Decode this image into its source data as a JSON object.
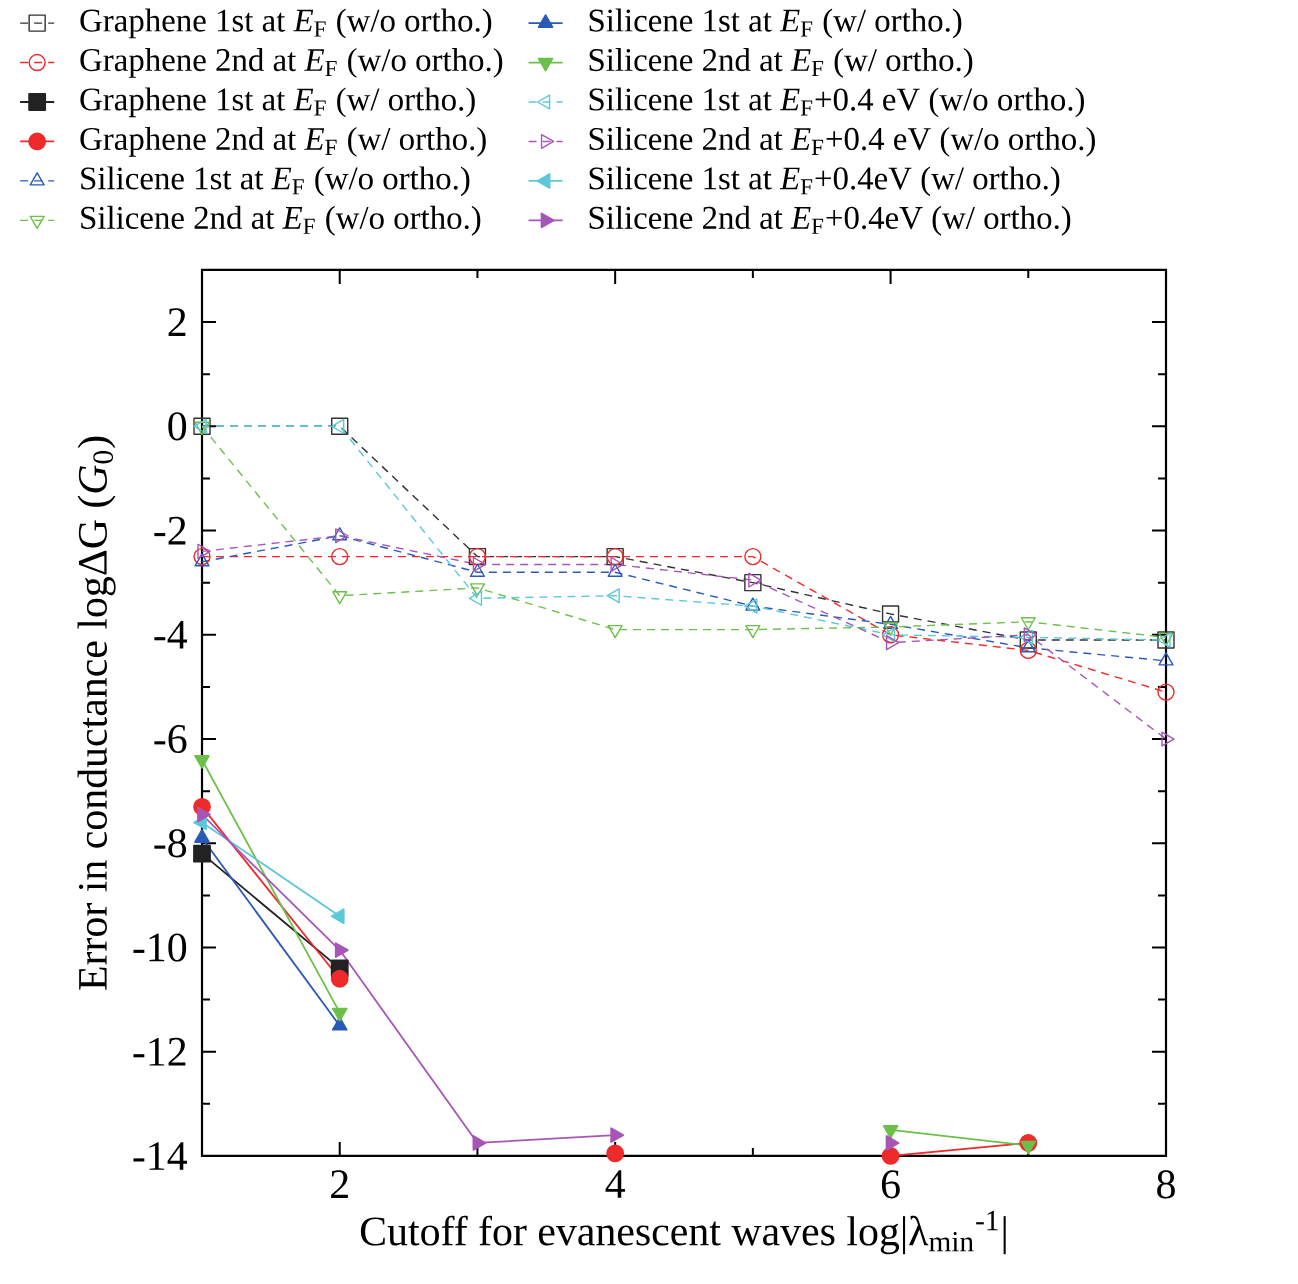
{
  "chart_data": {
    "type": "line",
    "xlabel": "Cutoff for evanescent waves log|λ$_{min}$$^{-1}$|",
    "ylabel": "Error in conductance logΔG (*G*$_{0}$)",
    "x": [
      1,
      2,
      3,
      4,
      5,
      6,
      7,
      8
    ],
    "xlim": [
      1,
      8
    ],
    "xticks": [
      2,
      4,
      6,
      8
    ],
    "ylim": [
      -14,
      3
    ],
    "yticks": [
      -14,
      -12,
      -10,
      -8,
      -6,
      -4,
      -2,
      0,
      2
    ],
    "legend": "top",
    "grid": false,
    "series": [
      {
        "name": "Graphene 1st at *E*$_{F}$ (w/o ortho.)",
        "color": "#333333",
        "marker": "square",
        "line_style": "dashed",
        "values": [
          0,
          0,
          -2.5,
          -2.5,
          -3.0,
          -3.6,
          -4.1,
          -4.1
        ]
      },
      {
        "name": "Graphene 2nd at *E*$_{F}$ (w/o ortho.)",
        "color": "#ee2a2a",
        "marker": "circle",
        "line_style": "dashed",
        "values": [
          -2.5,
          -2.5,
          -2.5,
          -2.5,
          -2.5,
          -4.0,
          -4.3,
          -5.1
        ]
      },
      {
        "name": "Graphene 1st at *E*$_{F}$ (w/ ortho.)",
        "color": "#222222",
        "marker": "square",
        "line_style": "solid",
        "values": [
          -8.2,
          -10.4,
          null,
          null,
          null,
          null,
          null,
          null
        ]
      },
      {
        "name": "Graphene 2nd at *E*$_{F}$ (w/ ortho.)",
        "color": "#ee2a2a",
        "marker": "circle",
        "line_style": "solid",
        "values": [
          -7.3,
          -10.6,
          null,
          -13.95,
          null,
          -14,
          -13.75,
          null
        ]
      },
      {
        "name": "Silicene 1st at *E*$_{F}$ (w/o ortho.)",
        "color": "#2a5ab8",
        "marker": "triangle",
        "line_style": "dashed",
        "values": [
          -2.6,
          -2.1,
          -2.8,
          -2.8,
          -3.45,
          -3.8,
          -4.25,
          -4.5
        ]
      },
      {
        "name": "Silicene 2nd at *E*$_{F}$ (w/o ortho.)",
        "color": "#6cc04a",
        "marker": "triangle-down",
        "line_style": "dashed",
        "values": [
          0,
          -3.25,
          -3.1,
          -3.9,
          -3.9,
          -3.85,
          -3.75,
          -4.05
        ]
      },
      {
        "name": "Silicene 1st at *E*$_{F}$ (w/ ortho.)",
        "color": "#2a5ab8",
        "marker": "triangle",
        "line_style": "solid",
        "values": [
          -7.9,
          -11.5,
          null,
          null,
          null,
          null,
          null,
          null
        ]
      },
      {
        "name": "Silicene 2nd at *E*$_{F}$ (w/ ortho.)",
        "color": "#6cc04a",
        "marker": "triangle-down",
        "line_style": "solid",
        "values": [
          -6.4,
          -11.25,
          null,
          null,
          null,
          -13.5,
          -13.8,
          null
        ]
      },
      {
        "name": "Silicene 1st at *E*$_{F}$+0.4 eV (w/o ortho.)",
        "color": "#5cc8d8",
        "marker": "triangle-left",
        "line_style": "dashed",
        "values": [
          0,
          0,
          -3.3,
          -3.25,
          -3.45,
          -4.0,
          -4.05,
          -4.1
        ]
      },
      {
        "name": "Silicene 2nd at *E*$_{F}$+0.4 eV (w/o ortho.)",
        "color": "#a855b8",
        "marker": "triangle-right",
        "line_style": "dashed",
        "values": [
          -2.4,
          -2.1,
          -2.65,
          -2.65,
          -2.95,
          -4.15,
          -4.0,
          -6.0
        ]
      },
      {
        "name": "Silicene 1st at *E*$_{F}$+0.4eV (w/ ortho.)",
        "color": "#5cc8d8",
        "marker": "triangle-left",
        "line_style": "solid",
        "values": [
          -7.6,
          -9.4,
          null,
          null,
          null,
          null,
          null,
          null
        ]
      },
      {
        "name": "Silicene 2nd at *E*$_{F}$+0.4eV (w/ ortho.)",
        "color": "#a855b8",
        "marker": "triangle-right",
        "line_style": "solid",
        "values": [
          -7.45,
          -10.05,
          -13.75,
          -13.6,
          null,
          -13.75,
          null,
          null
        ]
      }
    ]
  }
}
